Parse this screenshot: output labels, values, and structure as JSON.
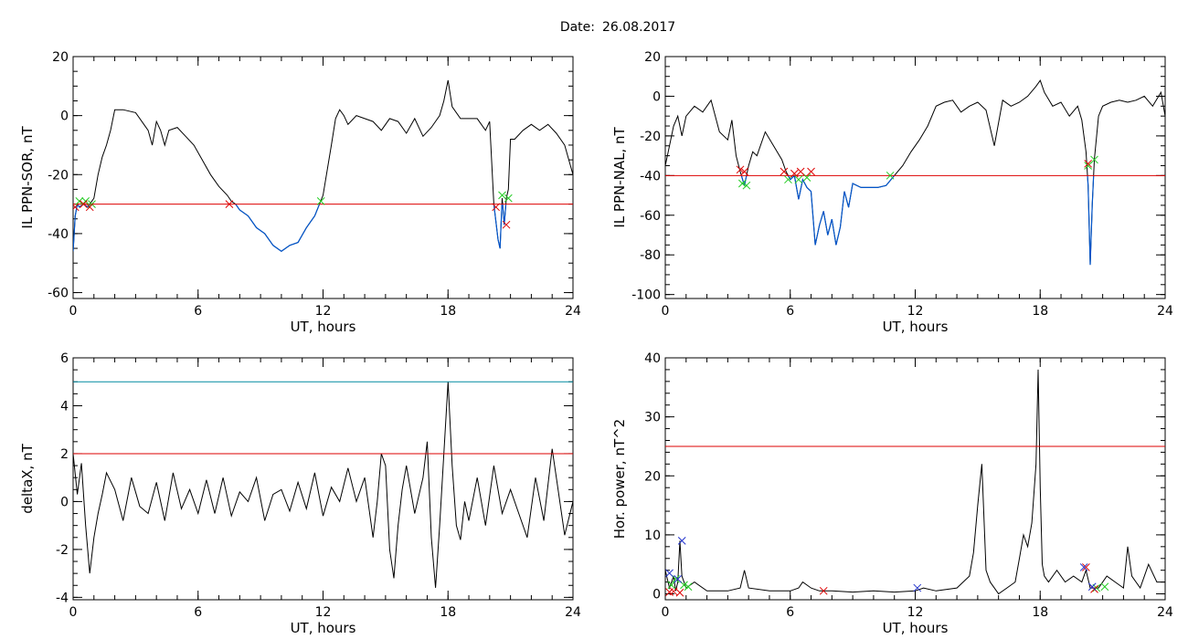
{
  "header": {
    "date_label": "Date:",
    "date_value": "26.08.2017"
  },
  "colors": {
    "trace": "#000000",
    "below": "#0055cc",
    "threshold": "#dd0000",
    "upper": "#008ba0",
    "start_marker": "#22cc22",
    "end_marker": "#dd0000",
    "peak_marker": "#2233cc"
  },
  "chart_data": [
    {
      "id": "sor",
      "type": "line",
      "xlabel": "UT, hours",
      "ylabel": "IL PPN-SOR, nT",
      "xlim": [
        0,
        24
      ],
      "ylim": [
        -62,
        20
      ],
      "xticks": [
        0,
        6,
        12,
        18,
        24
      ],
      "yticks": [
        20,
        0,
        -20,
        -40,
        -60
      ],
      "x_minor": 1,
      "y_minor": 5,
      "threshold": -30,
      "series": [
        {
          "x": [
            0,
            0.1,
            0.2,
            0.3,
            0.5,
            0.7,
            0.9,
            1.0,
            1.2,
            1.4,
            1.6,
            1.8,
            2.0,
            2.4,
            3.0,
            3.4,
            3.6,
            3.8,
            4.0,
            4.2,
            4.4,
            4.6,
            5.0,
            5.4,
            5.8,
            6.2,
            6.6,
            7.0,
            7.4,
            7.6,
            7.8,
            8.0,
            8.4,
            8.8,
            9.2,
            9.6,
            10.0,
            10.4,
            10.8,
            11.2,
            11.6,
            12.0,
            12.4,
            12.6,
            12.8,
            13.0,
            13.2,
            13.6,
            14.0,
            14.4,
            14.8,
            15.2,
            15.6,
            16.0,
            16.4,
            16.8,
            17.2,
            17.6,
            17.8,
            18.0,
            18.2,
            18.6,
            19.0,
            19.4,
            19.8,
            20.0,
            20.2,
            20.4,
            20.5,
            20.6,
            20.7,
            20.8,
            20.9,
            21.0,
            21.2,
            21.6,
            22.0,
            22.4,
            22.8,
            23.2,
            23.6,
            24.0
          ],
          "y": [
            -46,
            -34,
            -30,
            -31,
            -30,
            -31,
            -29,
            -28,
            -20,
            -14,
            -10,
            -5,
            2,
            2,
            1,
            -3,
            -5,
            -10,
            -2,
            -5,
            -10,
            -5,
            -4,
            -7,
            -10,
            -15,
            -20,
            -24,
            -27,
            -29,
            -30,
            -32,
            -34,
            -38,
            -40,
            -44,
            -46,
            -44,
            -43,
            -38,
            -34,
            -27,
            -10,
            -1,
            2,
            0,
            -3,
            0,
            -1,
            -2,
            -5,
            -1,
            -2,
            -6,
            -1,
            -7,
            -4,
            0,
            5,
            12,
            3,
            -1,
            -1,
            -1,
            -5,
            -2,
            -30,
            -42,
            -45,
            -28,
            -37,
            -28,
            -25,
            -8,
            -8,
            -5,
            -3,
            -5,
            -3,
            -6,
            -10,
            -20
          ]
        }
      ],
      "start_markers": [
        [
          0.3,
          -29
        ],
        [
          0.6,
          -29
        ],
        [
          0.9,
          -30
        ],
        [
          11.9,
          -29
        ],
        [
          20.6,
          -27
        ],
        [
          20.9,
          -28
        ]
      ],
      "end_markers": [
        [
          0.1,
          -31
        ],
        [
          0.5,
          -30
        ],
        [
          0.8,
          -31
        ],
        [
          7.5,
          -30
        ],
        [
          20.3,
          -31
        ],
        [
          20.8,
          -37
        ]
      ],
      "peak_markers": []
    },
    {
      "id": "nal",
      "type": "line",
      "xlabel": "UT, hours",
      "ylabel": "IL PPN-NAL, nT",
      "xlim": [
        0,
        24
      ],
      "ylim": [
        -102,
        20
      ],
      "xticks": [
        0,
        6,
        12,
        18,
        24
      ],
      "yticks": [
        20,
        0,
        -20,
        -40,
        -60,
        -80,
        -100
      ],
      "x_minor": 1,
      "y_minor": 5,
      "threshold": -40,
      "series": [
        {
          "x": [
            0,
            0.2,
            0.4,
            0.6,
            0.8,
            1.0,
            1.4,
            1.8,
            2.2,
            2.6,
            3.0,
            3.2,
            3.4,
            3.6,
            3.8,
            4.0,
            4.2,
            4.4,
            4.8,
            5.2,
            5.6,
            5.8,
            6.0,
            6.2,
            6.4,
            6.6,
            6.8,
            7.0,
            7.2,
            7.4,
            7.6,
            7.8,
            8.0,
            8.2,
            8.4,
            8.6,
            8.8,
            9.0,
            9.4,
            9.8,
            10.2,
            10.6,
            11.0,
            11.4,
            11.8,
            12.2,
            12.6,
            13.0,
            13.4,
            13.8,
            14.2,
            14.6,
            15.0,
            15.4,
            15.8,
            16.2,
            16.6,
            17.0,
            17.4,
            17.8,
            18.0,
            18.2,
            18.6,
            19.0,
            19.4,
            19.8,
            20.0,
            20.2,
            20.3,
            20.4,
            20.5,
            20.6,
            20.8,
            21.0,
            21.4,
            21.8,
            22.2,
            22.6,
            23.0,
            23.4,
            23.8,
            24.0
          ],
          "y": [
            -35,
            -25,
            -15,
            -10,
            -20,
            -10,
            -5,
            -8,
            -2,
            -18,
            -22,
            -12,
            -30,
            -38,
            -45,
            -35,
            -28,
            -30,
            -18,
            -25,
            -32,
            -38,
            -42,
            -40,
            -52,
            -42,
            -46,
            -48,
            -75,
            -65,
            -58,
            -70,
            -62,
            -75,
            -66,
            -48,
            -56,
            -44,
            -46,
            -46,
            -46,
            -45,
            -40,
            -35,
            -28,
            -22,
            -15,
            -5,
            -3,
            -2,
            -8,
            -5,
            -3,
            -7,
            -25,
            -2,
            -5,
            -3,
            0,
            5,
            8,
            2,
            -5,
            -3,
            -10,
            -5,
            -12,
            -28,
            -45,
            -85,
            -55,
            -32,
            -10,
            -5,
            -3,
            -2,
            -3,
            -2,
            0,
            -5,
            2,
            -10
          ]
        }
      ],
      "start_markers": [
        [
          3.7,
          -44
        ],
        [
          3.9,
          -45
        ],
        [
          5.9,
          -42
        ],
        [
          6.4,
          -42
        ],
        [
          6.8,
          -41
        ],
        [
          10.8,
          -40
        ],
        [
          20.3,
          -35
        ],
        [
          20.6,
          -32
        ]
      ],
      "end_markers": [
        [
          3.6,
          -37
        ],
        [
          3.8,
          -38
        ],
        [
          5.7,
          -38
        ],
        [
          6.2,
          -39
        ],
        [
          6.5,
          -38
        ],
        [
          7.0,
          -38
        ],
        [
          20.3,
          -34
        ]
      ],
      "peak_markers": []
    },
    {
      "id": "deltax",
      "type": "line",
      "xlabel": "UT, hours",
      "ylabel": "deltaX, nT",
      "xlim": [
        0,
        24
      ],
      "ylim": [
        -4.1,
        6
      ],
      "xticks": [
        0,
        6,
        12,
        18,
        24
      ],
      "yticks": [
        6,
        4,
        2,
        0,
        -2,
        -4
      ],
      "x_minor": 1,
      "y_minor": 0.5,
      "threshold": 2,
      "upper_threshold": 5,
      "series": [
        {
          "x": [
            0,
            0.2,
            0.4,
            0.6,
            0.8,
            1.0,
            1.2,
            1.4,
            1.6,
            2.0,
            2.4,
            2.8,
            3.2,
            3.6,
            4.0,
            4.4,
            4.8,
            5.2,
            5.6,
            6.0,
            6.4,
            6.8,
            7.2,
            7.6,
            8.0,
            8.4,
            8.8,
            9.2,
            9.6,
            10.0,
            10.4,
            10.8,
            11.2,
            11.6,
            12.0,
            12.4,
            12.8,
            13.2,
            13.6,
            14.0,
            14.4,
            14.6,
            14.8,
            15.0,
            15.2,
            15.4,
            15.6,
            15.8,
            16.0,
            16.4,
            16.8,
            17.0,
            17.2,
            17.4,
            17.6,
            17.8,
            18.0,
            18.2,
            18.4,
            18.6,
            18.8,
            19.0,
            19.4,
            19.8,
            20.2,
            20.6,
            21.0,
            21.4,
            21.8,
            22.2,
            22.6,
            23.0,
            23.2,
            23.6,
            24.0
          ],
          "y": [
            2.0,
            0.3,
            1.6,
            -1.0,
            -3.0,
            -1.5,
            -0.5,
            0.3,
            1.2,
            0.5,
            -0.8,
            1.0,
            -0.2,
            -0.5,
            0.8,
            -0.8,
            1.2,
            -0.3,
            0.5,
            -0.5,
            0.9,
            -0.5,
            1.0,
            -0.6,
            0.4,
            0.0,
            1.0,
            -0.8,
            0.3,
            0.5,
            -0.4,
            0.8,
            -0.3,
            1.2,
            -0.6,
            0.6,
            0.0,
            1.4,
            0.0,
            1.0,
            -1.5,
            0.0,
            2.0,
            1.5,
            -2.0,
            -3.2,
            -1.0,
            0.5,
            1.5,
            -0.5,
            1.0,
            2.5,
            -1.5,
            -3.6,
            -1.0,
            2.0,
            5.0,
            1.5,
            -1.0,
            -1.6,
            0.0,
            -0.8,
            1.0,
            -1.0,
            1.5,
            -0.5,
            0.5,
            -0.5,
            -1.5,
            1.0,
            -0.8,
            2.2,
            1.0,
            -1.4,
            0.0
          ]
        }
      ],
      "start_markers": [],
      "end_markers": [],
      "peak_markers": []
    },
    {
      "id": "power",
      "type": "line",
      "xlabel": "UT, hours",
      "ylabel": "Hor. power, nT^2",
      "xlim": [
        0,
        24
      ],
      "ylim": [
        -1,
        40
      ],
      "xticks": [
        0,
        6,
        12,
        18,
        24
      ],
      "yticks": [
        40,
        30,
        20,
        10,
        0
      ],
      "x_minor": 1,
      "y_minor": 2,
      "threshold": 25,
      "series": [
        {
          "x": [
            0,
            0.2,
            0.4,
            0.5,
            0.6,
            0.7,
            0.8,
            1.0,
            1.4,
            2.0,
            3.0,
            3.6,
            3.8,
            4.0,
            5.0,
            6.0,
            6.4,
            6.6,
            7.0,
            7.4,
            8.0,
            9.0,
            10.0,
            11.0,
            12.0,
            12.4,
            13.0,
            14.0,
            14.6,
            14.8,
            15.0,
            15.2,
            15.4,
            15.6,
            15.8,
            16.0,
            16.4,
            16.8,
            17.0,
            17.2,
            17.4,
            17.6,
            17.8,
            17.9,
            18.0,
            18.1,
            18.2,
            18.4,
            18.8,
            19.2,
            19.6,
            20.0,
            20.2,
            20.4,
            20.8,
            21.2,
            21.6,
            22.0,
            22.2,
            22.4,
            22.8,
            23.2,
            23.6,
            24.0
          ],
          "y": [
            4,
            1,
            3,
            0.5,
            2,
            9,
            3,
            1,
            2,
            0.5,
            0.5,
            1,
            4,
            1,
            0.5,
            0.5,
            1,
            2,
            1,
            0.5,
            0.5,
            0.3,
            0.5,
            0.3,
            0.5,
            1,
            0.5,
            1,
            3,
            7,
            15,
            22,
            4,
            2,
            1,
            0,
            1,
            2,
            6,
            10,
            8,
            12,
            22,
            38,
            18,
            5,
            3,
            2,
            4,
            2,
            3,
            2,
            4,
            1,
            1,
            3,
            2,
            1,
            8,
            3,
            1,
            5,
            2,
            2
          ]
        }
      ],
      "start_markers": [
        [
          0.3,
          1.5
        ],
        [
          0.5,
          2.5
        ],
        [
          0.9,
          1.5
        ],
        [
          1.1,
          1.2
        ],
        [
          20.7,
          1.0
        ],
        [
          21.1,
          1.2
        ]
      ],
      "end_markers": [
        [
          0.2,
          0.3
        ],
        [
          0.4,
          0.4
        ],
        [
          0.7,
          0.2
        ],
        [
          7.6,
          0.5
        ],
        [
          20.2,
          4.5
        ],
        [
          20.6,
          0.8
        ]
      ],
      "peak_markers": [
        [
          0.2,
          3.5
        ],
        [
          0.6,
          2.5
        ],
        [
          0.8,
          9
        ],
        [
          12.1,
          1
        ],
        [
          20.1,
          4.5
        ],
        [
          20.5,
          1.2
        ]
      ]
    }
  ]
}
